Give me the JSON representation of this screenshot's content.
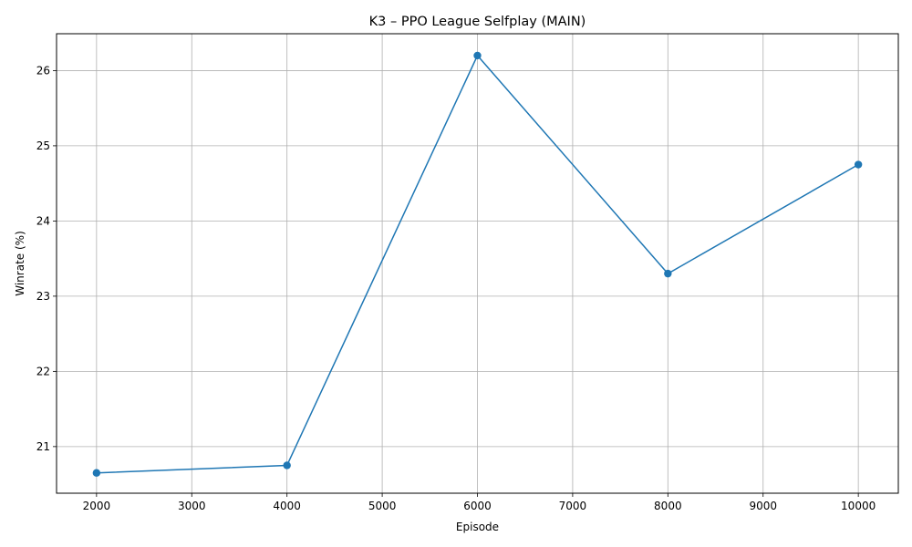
{
  "chart_data": {
    "type": "line",
    "title": "K3 – PPO League Selfplay (MAIN)",
    "xlabel": "Episode",
    "ylabel": "Winrate (%)",
    "xlim": [
      1580,
      10420
    ],
    "ylim": [
      20.38,
      26.49
    ],
    "xticks": [
      2000,
      3000,
      4000,
      5000,
      6000,
      7000,
      8000,
      9000,
      10000
    ],
    "yticks": [
      21,
      22,
      23,
      24,
      25,
      26
    ],
    "grid": true,
    "series": [
      {
        "color": "#1f77b4",
        "marker": "circle",
        "x": [
          2000,
          4000,
          6000,
          8000,
          10000
        ],
        "y": [
          20.65,
          20.75,
          26.2,
          23.3,
          24.75
        ]
      }
    ]
  }
}
